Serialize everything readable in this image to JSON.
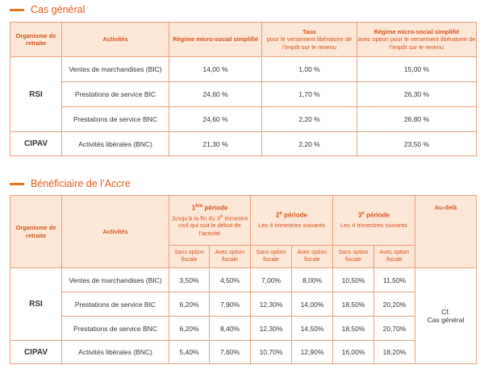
{
  "section1": {
    "title": "Cas général",
    "headers": {
      "organisme": "Organisme de retraite",
      "activites": "Activités",
      "col1": "Régime micro-social simplifié",
      "col2_title": "Taux",
      "col2_sub": "pour le versement libératoire de l’impôt sur le revenu",
      "col3_title": "Régime micro-social simplifié",
      "col3_sub": "avec option pour le versement libératoire de l’impôt sur le revenu"
    },
    "groups": [
      {
        "organisme": "RSI",
        "rows": [
          {
            "activite": "Ventes de marchandises (BIC)",
            "v1": "14,00 %",
            "v2": "1,00 %",
            "v3": "15,00 %"
          },
          {
            "activite": "Prestations de service BIC",
            "v1": "24,60 %",
            "v2": "1,70 %",
            "v3": "26,30 %"
          },
          {
            "activite": "Prestations de service BNC",
            "v1": "24,60 %",
            "v2": "2,20 %",
            "v3": "26,80 %"
          }
        ]
      },
      {
        "organisme": "CIPAV",
        "rows": [
          {
            "activite": "Activités libérales (BNC)",
            "v1": "21,30 %",
            "v2": "2,20 %",
            "v3": "23,50 %"
          }
        ]
      }
    ]
  },
  "section2": {
    "title": "Bénéficiaire de l’Accre",
    "headers": {
      "organisme": "Organisme de retraite",
      "activites": "Activités",
      "p1_num": "1",
      "p1_sup": "ère",
      "p1_word": "période",
      "p1_desc_a": "Jusqu’à la fin du 3",
      "p1_desc_sup": "e",
      "p1_desc_b": "trimestre civil qui suit le début de l’activité",
      "p2_num": "2",
      "p2_sup": "e",
      "p2_word": "période",
      "p2_desc": "Les 4 trimestres suivants",
      "p3_num": "3",
      "p3_sup": "e",
      "p3_word": "période",
      "p3_desc": "Les 4 trimestres suivants",
      "audela": "Au-delà",
      "sans": "Sans option fiscale",
      "avec": "Avec option fiscale"
    },
    "groups": [
      {
        "organisme": "RSI",
        "rows": [
          {
            "activite": "Ventes de marchandises (BIC)",
            "vals": [
              "3,50%",
              "4,50%",
              "7,00%",
              "8,00%",
              "10,50%",
              "11,50%"
            ]
          },
          {
            "activite": "Prestations de service BIC",
            "vals": [
              "6,20%",
              "7,90%",
              "12,30%",
              "14,00%",
              "18,50%",
              "20,20%"
            ]
          },
          {
            "activite": "Prestations de service BNC",
            "vals": [
              "6,20%",
              "8,40%",
              "12,30%",
              "14,50%",
              "18,50%",
              "20,70%"
            ]
          }
        ]
      },
      {
        "organisme": "CIPAV",
        "rows": [
          {
            "activite": "Activités libérales (BNC)",
            "vals": [
              "5,40%",
              "7,60%",
              "10,70%",
              "12,90%",
              "16,00%",
              "18,20%"
            ]
          }
        ]
      }
    ],
    "audela_value_1": "Cf.",
    "audela_value_2": "Cas général"
  }
}
